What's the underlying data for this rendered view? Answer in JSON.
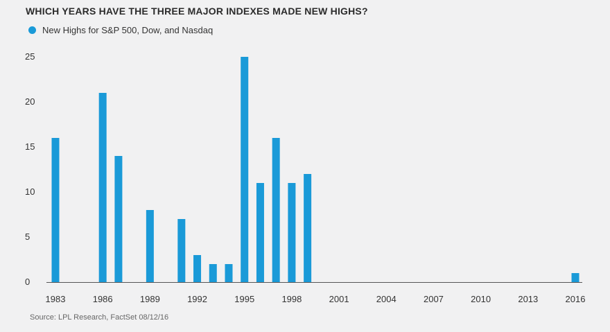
{
  "chart_data": {
    "type": "bar",
    "title": "WHICH YEARS HAVE THE THREE MAJOR INDEXES MADE NEW HIGHS?",
    "series": [
      {
        "name": "New Highs for S&P 500, Dow, and Nasdaq",
        "color": "#1a9ad8",
        "x": [
          1983,
          1986,
          1987,
          1989,
          1991,
          1992,
          1993,
          1994,
          1995,
          1996,
          1997,
          1998,
          1999,
          2016
        ],
        "values": [
          16,
          21,
          14,
          8,
          7,
          3,
          2,
          2,
          25,
          11,
          16,
          11,
          12,
          1
        ]
      }
    ],
    "xlim": [
      1983,
      2016
    ],
    "ylim": [
      0,
      25
    ],
    "xticks": [
      "1983",
      "1986",
      "1989",
      "1992",
      "1995",
      "1998",
      "2001",
      "2004",
      "2007",
      "2010",
      "2013",
      "2016"
    ],
    "yticks": [
      "0",
      "5",
      "10",
      "15",
      "20",
      "25"
    ],
    "grid": false,
    "legend_position": "top-left",
    "source": "Source: LPL Research, FactSet   08/12/16"
  }
}
